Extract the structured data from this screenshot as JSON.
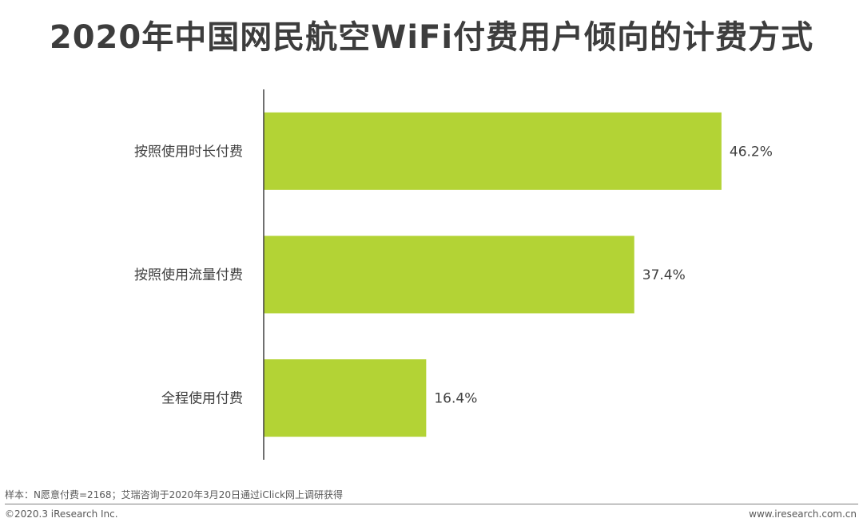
{
  "title": "2020年中国网民航空WiFi付费用户倾向的计费方式",
  "chart_data": {
    "type": "bar",
    "orientation": "horizontal",
    "title": "2020年中国网民航空WiFi付费用户倾向的计费方式",
    "xlabel": "",
    "ylabel": "",
    "categories": [
      "按照使用时长付费",
      "按照使用流量付费",
      "全程使用付费"
    ],
    "values": [
      46.2,
      37.4,
      16.4
    ],
    "value_labels": [
      "46.2%",
      "37.4%",
      "16.4%"
    ],
    "xlim": [
      0,
      50
    ],
    "grid": false,
    "legend": "none",
    "bar_color": "#b3d335"
  },
  "footer": {
    "note": "样本：N愿意付费=2168；艾瑞咨询于2020年3月20日通过iClick网上调研获得",
    "copyright": "©2020.3 iResearch Inc.",
    "website": "www.iresearch.com.cn"
  }
}
